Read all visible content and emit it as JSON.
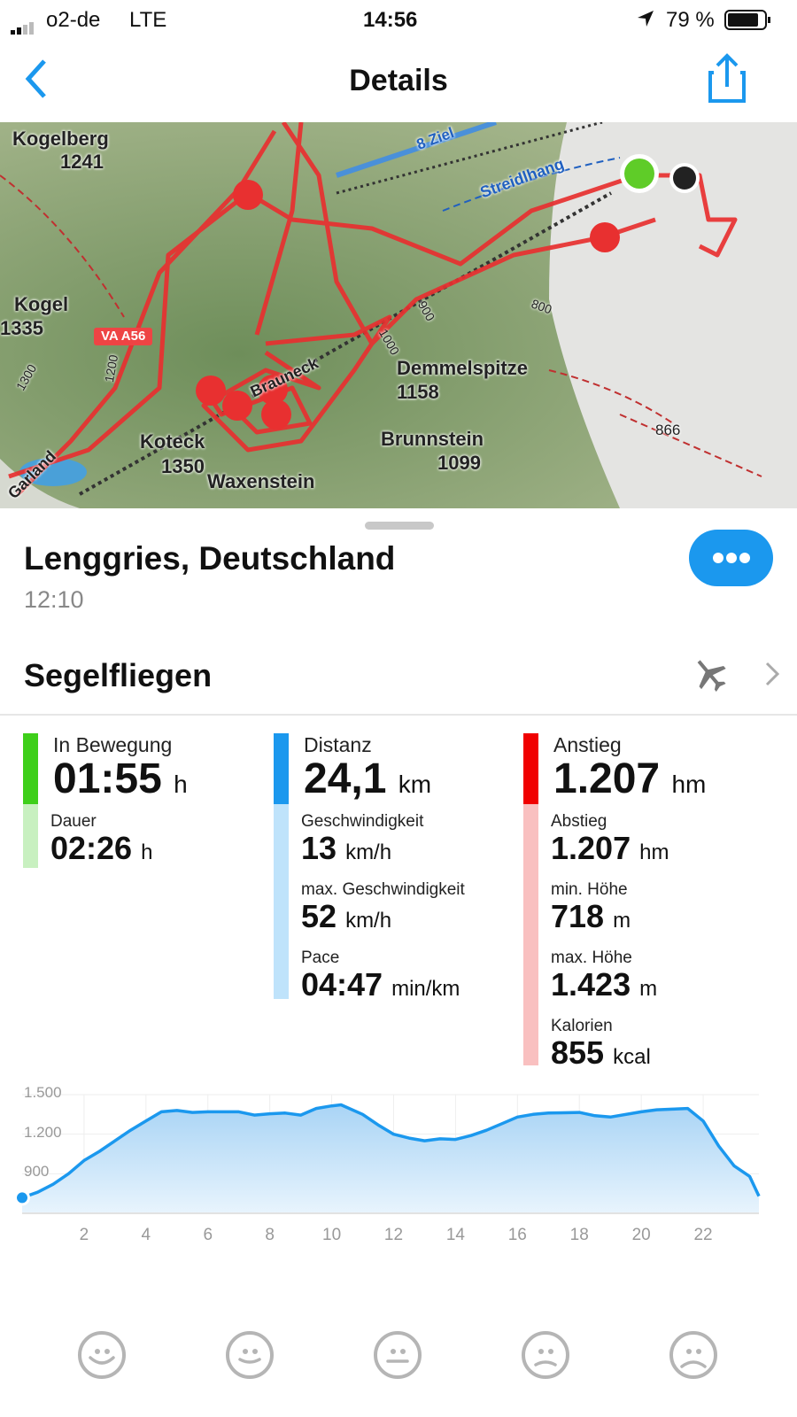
{
  "status_bar": {
    "carrier": "o2-de",
    "network": "LTE",
    "time": "14:56",
    "battery": "79 %"
  },
  "nav": {
    "title": "Details",
    "back_icon": "chevron-left-icon",
    "share_icon": "share-icon"
  },
  "map": {
    "labels": [
      "Kogelberg",
      "1241",
      "Kogel",
      "1335",
      "VA A56",
      "Demmelspitze",
      "1158",
      "Brunnstein",
      "1099",
      "Koteck",
      "1350",
      "Waxenstein",
      "866",
      "Brauneck",
      "Streidlhang",
      "8 Ziel",
      "Garland",
      "1300",
      "1200",
      "1000",
      "900",
      "800"
    ]
  },
  "location": {
    "title": "Lenggries, Deutschland",
    "time": "12:10"
  },
  "activity": {
    "name": "Segelfliegen",
    "icon": "airplane-icon"
  },
  "stats": {
    "col1": {
      "color": "#3ecf1a",
      "light": "#c8f0c0",
      "main_label": "In Bewegung",
      "main_value": "01:55",
      "main_unit": "h",
      "items": [
        {
          "label": "Dauer",
          "value": "02:26",
          "unit": "h"
        }
      ]
    },
    "col2": {
      "color": "#1b98ee",
      "light": "#bfe3fb",
      "main_label": "Distanz",
      "main_value": "24,1",
      "main_unit": "km",
      "items": [
        {
          "label": "Geschwindigkeit",
          "value": "13",
          "unit": "km/h"
        },
        {
          "label": "max. Geschwindigkeit",
          "value": "52",
          "unit": "km/h"
        },
        {
          "label": "Pace",
          "value": "04:47",
          "unit": "min/km"
        }
      ]
    },
    "col3": {
      "color": "#f00000",
      "light": "#f9c0c0",
      "main_label": "Anstieg",
      "main_value": "1.207",
      "main_unit": "hm",
      "items": [
        {
          "label": "Abstieg",
          "value": "1.207",
          "unit": "hm"
        },
        {
          "label": "min. Höhe",
          "value": "718",
          "unit": "m"
        },
        {
          "label": "max. Höhe",
          "value": "1.423",
          "unit": "m"
        },
        {
          "label": "Kalorien",
          "value": "855",
          "unit": "kcal"
        }
      ]
    }
  },
  "chart_data": {
    "type": "area",
    "ylim": [
      600,
      1500
    ],
    "xlim": [
      0,
      23.8
    ],
    "yticks": [
      "900",
      "1.200",
      "1.500"
    ],
    "ytick_values": [
      900,
      1200,
      1500
    ],
    "xticks": [
      "2",
      "4",
      "6",
      "8",
      "10",
      "12",
      "14",
      "16",
      "18",
      "20",
      "22"
    ],
    "xtick_values": [
      2,
      4,
      6,
      8,
      10,
      12,
      14,
      16,
      18,
      20,
      22
    ],
    "grid": true,
    "color": "#1b98ee",
    "x": [
      0,
      0.5,
      1,
      1.5,
      2,
      2.5,
      3,
      3.5,
      4,
      4.5,
      5,
      5.5,
      6,
      7,
      7.5,
      8,
      8.5,
      9,
      9.5,
      10,
      10.3,
      11,
      11.5,
      12,
      12.5,
      13,
      13.5,
      14,
      14.5,
      15,
      15.5,
      16,
      16.5,
      17,
      18,
      18.5,
      19,
      20,
      20.5,
      21,
      21.5,
      22,
      22.5,
      23,
      23.5,
      23.8
    ],
    "y": [
      718,
      760,
      820,
      900,
      1000,
      1070,
      1150,
      1230,
      1300,
      1370,
      1380,
      1365,
      1370,
      1370,
      1345,
      1355,
      1360,
      1345,
      1395,
      1415,
      1423,
      1350,
      1270,
      1200,
      1170,
      1150,
      1165,
      1160,
      1190,
      1230,
      1280,
      1330,
      1350,
      1360,
      1365,
      1340,
      1330,
      1370,
      1385,
      1390,
      1395,
      1300,
      1110,
      960,
      880,
      730
    ]
  },
  "moods": [
    "very-happy-icon",
    "happy-icon",
    "neutral-icon",
    "sad-icon",
    "very-sad-icon"
  ]
}
